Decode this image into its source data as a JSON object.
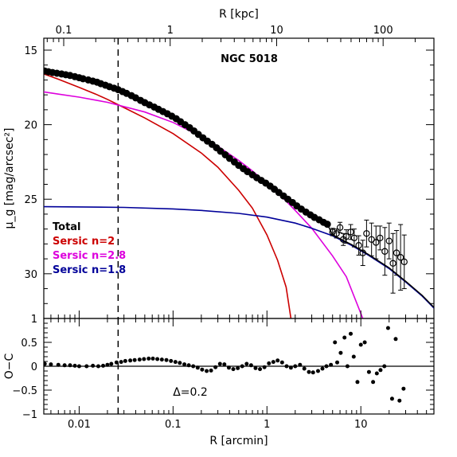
{
  "chart_data": [
    {
      "panel": "profile",
      "type": "scatter",
      "title": "NGC 5018",
      "xlabel": "",
      "top_xlabel": "R [kpc]",
      "ylabel": "μ_g [mag/arcsec²]",
      "x_scale": "log",
      "x_range_arcmin": [
        0.0042,
        60
      ],
      "top_axis_range_kpc": [
        0.065,
        300
      ],
      "ylim": [
        33,
        14.2
      ],
      "y_inverted": true,
      "x_ticks": [],
      "top_ticks": [
        "0.1",
        "1",
        "10",
        "100"
      ],
      "y_ticks": [
        "15",
        "20",
        "25",
        "30"
      ],
      "vertical_dashed_line_x": 0.026,
      "legend": {
        "placement": "bottom-left",
        "items": [
          {
            "label": "Total",
            "color": "#000000"
          },
          {
            "label": "Sersic n=2",
            "color": "#cc0000"
          },
          {
            "label": "Sersic n=2.8",
            "color": "#dd00dd"
          },
          {
            "label": "Sersic n=1.8",
            "color": "#000099"
          }
        ]
      },
      "series": [
        {
          "name": "Total",
          "kind": "points+model",
          "color": "#000000",
          "x": [
            0.0043,
            0.0047,
            0.0052,
            0.0058,
            0.0065,
            0.0072,
            0.008,
            0.009,
            0.01,
            0.011,
            0.0125,
            0.014,
            0.0155,
            0.017,
            0.019,
            0.021,
            0.0235,
            0.026,
            0.029,
            0.032,
            0.036,
            0.04,
            0.045,
            0.05,
            0.056,
            0.063,
            0.07,
            0.078,
            0.087,
            0.097,
            0.108,
            0.12,
            0.134,
            0.15,
            0.167,
            0.186,
            0.208,
            0.232,
            0.26,
            0.29,
            0.32,
            0.36,
            0.4,
            0.45,
            0.5,
            0.56,
            0.62,
            0.7,
            0.78,
            0.87,
            0.97,
            1.08,
            1.2,
            1.34,
            1.5,
            1.67,
            1.87,
            2.08,
            2.32,
            2.6,
            2.9,
            3.2,
            3.6,
            4.0,
            4.4
          ],
          "y": [
            16.4,
            16.45,
            16.5,
            16.55,
            16.6,
            16.65,
            16.7,
            16.78,
            16.85,
            16.92,
            17.0,
            17.08,
            17.15,
            17.25,
            17.35,
            17.45,
            17.55,
            17.65,
            17.78,
            17.9,
            18.05,
            18.2,
            18.37,
            18.52,
            18.67,
            18.82,
            18.97,
            19.12,
            19.27,
            19.43,
            19.6,
            19.8,
            20.0,
            20.2,
            20.42,
            20.65,
            20.88,
            21.1,
            21.32,
            21.55,
            21.78,
            22.02,
            22.26,
            22.5,
            22.73,
            22.95,
            23.15,
            23.36,
            23.56,
            23.74,
            23.92,
            24.12,
            24.33,
            24.55,
            24.78,
            25.0,
            25.22,
            25.45,
            25.66,
            25.86,
            26.05,
            26.22,
            26.38,
            26.55,
            26.68
          ]
        },
        {
          "name": "Total (outer, with error bars)",
          "color": "#000000",
          "x": [
            5.0,
            5.5,
            6.0,
            6.5,
            7.0,
            7.8,
            8.5,
            9.5,
            10.5,
            11.5,
            13.0,
            14.5,
            16.0,
            18.0,
            20.0,
            22.0,
            24.0,
            26.5,
            29.0
          ],
          "y": [
            27.2,
            27.3,
            26.9,
            27.7,
            27.5,
            27.2,
            27.6,
            28.1,
            28.6,
            27.3,
            27.7,
            27.9,
            27.6,
            28.5,
            27.8,
            29.3,
            28.6,
            28.9,
            29.2
          ],
          "err": [
            0.25,
            0.3,
            0.35,
            0.4,
            0.45,
            0.5,
            0.6,
            0.65,
            0.85,
            0.9,
            1.1,
            1.1,
            0.8,
            1.6,
            1.2,
            2.0,
            1.5,
            2.2,
            1.8
          ]
        },
        {
          "name": "Sersic n=2",
          "kind": "model",
          "color": "#cc0000",
          "x": [
            0.0042,
            0.006,
            0.01,
            0.015,
            0.02,
            0.03,
            0.05,
            0.1,
            0.2,
            0.3,
            0.5,
            0.7,
            1.0,
            1.3,
            1.6,
            1.8
          ],
          "y": [
            16.6,
            16.95,
            17.5,
            17.95,
            18.3,
            18.85,
            19.55,
            20.6,
            21.9,
            22.85,
            24.4,
            25.6,
            27.4,
            29.1,
            30.9,
            33.0
          ]
        },
        {
          "name": "Sersic n=2.8",
          "kind": "model",
          "color": "#dd00dd",
          "x": [
            0.0042,
            0.006,
            0.01,
            0.02,
            0.05,
            0.1,
            0.2,
            0.3,
            0.5,
            0.7,
            1.0,
            1.5,
            2.0,
            3.0,
            5.0,
            7.0,
            10.5
          ],
          "y": [
            17.8,
            17.95,
            18.15,
            18.5,
            19.15,
            19.85,
            20.8,
            21.45,
            22.4,
            23.1,
            23.95,
            24.95,
            25.75,
            26.95,
            28.8,
            30.2,
            33.0
          ]
        },
        {
          "name": "Sersic n=1.8",
          "kind": "model",
          "color": "#000099",
          "x": [
            0.0042,
            0.01,
            0.03,
            0.1,
            0.2,
            0.5,
            1.0,
            2.0,
            3.0,
            5.0,
            8.0,
            12.0,
            20.0,
            30.0,
            45.0,
            60.0
          ],
          "y": [
            25.5,
            25.52,
            25.55,
            25.65,
            25.75,
            25.95,
            26.2,
            26.6,
            26.95,
            27.45,
            28.1,
            28.75,
            29.65,
            30.55,
            31.5,
            32.3
          ]
        }
      ]
    },
    {
      "panel": "residuals",
      "type": "scatter",
      "xlabel": "R [arcmin]",
      "ylabel": "O−C",
      "x_scale": "log",
      "x_range_arcmin": [
        0.0042,
        60
      ],
      "ylim": [
        -1,
        1
      ],
      "x_ticks": [
        "0.01",
        "0.1",
        "1",
        "10"
      ],
      "y_ticks": [
        "−1",
        "−0.5",
        "0",
        "0.5",
        "1"
      ],
      "zero_line": 0,
      "vertical_dashed_line_x": 0.026,
      "annotation": "Δ=0.2",
      "series": [
        {
          "name": "",
          "color": "#000000",
          "x": [
            0.0043,
            0.005,
            0.006,
            0.007,
            0.008,
            0.009,
            0.01,
            0.012,
            0.014,
            0.016,
            0.018,
            0.02,
            0.022,
            0.025,
            0.028,
            0.031,
            0.035,
            0.039,
            0.044,
            0.049,
            0.055,
            0.061,
            0.068,
            0.076,
            0.085,
            0.095,
            0.106,
            0.118,
            0.132,
            0.147,
            0.164,
            0.183,
            0.204,
            0.228,
            0.254,
            0.283,
            0.316,
            0.352,
            0.393,
            0.438,
            0.489,
            0.545,
            0.608,
            0.678,
            0.756,
            0.843,
            0.94,
            1.05,
            1.17,
            1.3,
            1.45,
            1.62,
            1.8,
            2.0,
            2.25,
            2.5,
            2.8,
            3.1,
            3.5,
            3.9,
            4.3,
            4.8,
            5.3,
            5.6,
            6.1,
            6.7,
            7.2,
            7.8,
            8.4,
            9.2,
            10.0,
            11.0,
            12.2,
            13.5,
            14.8,
            16.2,
            17.8,
            19.5,
            21.5,
            23.5,
            25.8,
            28.5
          ],
          "y": [
            0.05,
            0.04,
            0.03,
            0.02,
            0.02,
            0.01,
            0.0,
            0.0,
            0.01,
            0.0,
            0.01,
            0.03,
            0.05,
            0.08,
            0.09,
            0.11,
            0.12,
            0.13,
            0.14,
            0.15,
            0.16,
            0.16,
            0.15,
            0.14,
            0.13,
            0.11,
            0.09,
            0.07,
            0.04,
            0.02,
            0.0,
            -0.03,
            -0.07,
            -0.1,
            -0.09,
            -0.02,
            0.05,
            0.04,
            -0.03,
            -0.06,
            -0.04,
            0.0,
            0.05,
            0.02,
            -0.04,
            -0.06,
            -0.02,
            0.06,
            0.09,
            0.12,
            0.08,
            0.0,
            -0.03,
            0.0,
            0.03,
            -0.05,
            -0.12,
            -0.13,
            -0.1,
            -0.05,
            0.0,
            0.03,
            0.5,
            0.08,
            0.28,
            0.6,
            0.0,
            0.68,
            0.2,
            -0.33,
            0.45,
            0.5,
            -0.12,
            -0.33,
            -0.15,
            -0.08,
            0.0,
            0.8,
            -0.68,
            0.57,
            -0.72,
            -0.47
          ]
        }
      ]
    }
  ]
}
